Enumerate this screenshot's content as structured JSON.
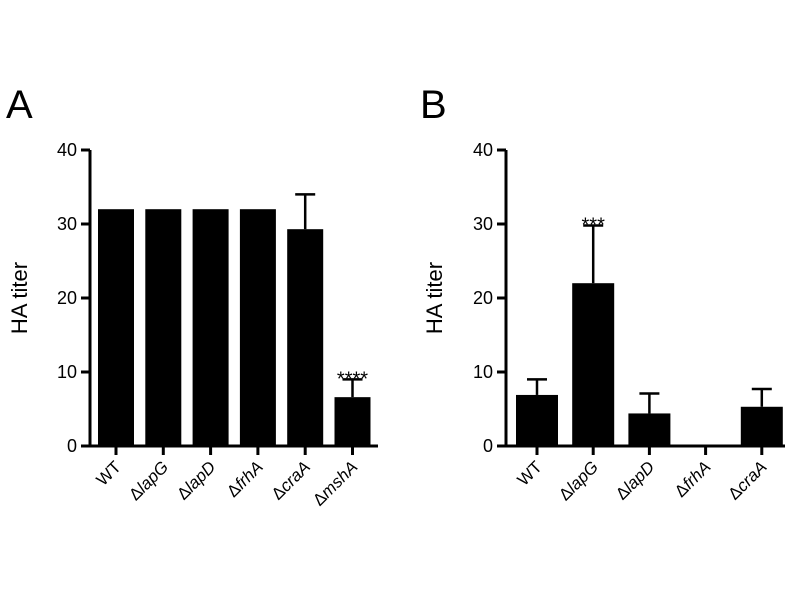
{
  "chart_data": [
    {
      "panel": "A",
      "type": "bar",
      "ylabel": "HA titer",
      "ylim": [
        0,
        40
      ],
      "yticks": [
        0,
        10,
        20,
        30,
        40
      ],
      "categories": [
        {
          "delta": "",
          "name": "WT"
        },
        {
          "delta": "Δ",
          "name": "lapG"
        },
        {
          "delta": "Δ",
          "name": "lapD"
        },
        {
          "delta": "Δ",
          "name": "frhA"
        },
        {
          "delta": "Δ",
          "name": "craA"
        },
        {
          "delta": "Δ",
          "name": "mshA"
        }
      ],
      "values": [
        32,
        32,
        32,
        32,
        29.3,
        6.6
      ],
      "error": [
        0,
        0,
        0,
        0,
        4.7,
        2.4
      ],
      "significance": [
        "",
        "",
        "",
        "",
        "",
        "****"
      ],
      "bar_color": "#000000"
    },
    {
      "panel": "B",
      "type": "bar",
      "ylabel": "HA titer",
      "ylim": [
        0,
        40
      ],
      "yticks": [
        0,
        10,
        20,
        30,
        40
      ],
      "categories": [
        {
          "delta": "",
          "name": "WT"
        },
        {
          "delta": "Δ",
          "name": "lapG"
        },
        {
          "delta": "Δ",
          "name": "lapD"
        },
        {
          "delta": "Δ",
          "name": "frhA"
        },
        {
          "delta": "Δ",
          "name": "craA"
        }
      ],
      "values": [
        6.9,
        22,
        4.4,
        0,
        5.3
      ],
      "error": [
        2.1,
        7.8,
        2.7,
        0,
        2.4
      ],
      "significance": [
        "",
        "***",
        "",
        "",
        ""
      ],
      "bar_color": "#000000"
    }
  ]
}
